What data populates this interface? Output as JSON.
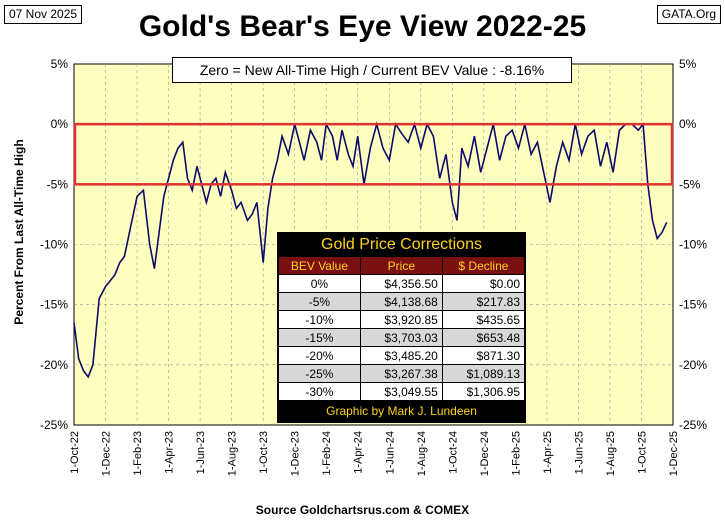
{
  "header": {
    "date": "07 Nov 2025",
    "source_tag": "GATA.Org",
    "title": "Gold's Bear's Eye View 2022-25",
    "info": "Zero = New All-Time High / Current  BEV Value : -8.16%",
    "footer": "Source Goldchartsrus.com & COMEX"
  },
  "table": {
    "title": "Gold Price Corrections",
    "headers": [
      "BEV Value",
      "Price",
      "$ Decline"
    ],
    "rows": [
      [
        "0%",
        "$4,356.50",
        "$0.00"
      ],
      [
        "-5%",
        "$4,138.68",
        "$217.83"
      ],
      [
        "-10%",
        "$3,920.85",
        "$435.65"
      ],
      [
        "-15%",
        "$3,703.03",
        "$653.48"
      ],
      [
        "-20%",
        "$3,485.20",
        "$871.30"
      ],
      [
        "-25%",
        "$3,267.38",
        "$1,089.13"
      ],
      [
        "-30%",
        "$3,049.55",
        "$1,306.95"
      ]
    ],
    "footer": "Graphic by Mark J. Lundeen"
  },
  "chart_data": {
    "type": "line",
    "title": "Gold's Bear's Eye View 2022-25",
    "ylabel": "Percent  From  Last  All-Time High",
    "xlabel": "",
    "ylim": [
      -25,
      5
    ],
    "y_ticks": [
      5,
      0,
      -5,
      -10,
      -15,
      -20,
      -25
    ],
    "y_tick_labels": [
      "5%",
      "0%",
      "-5%",
      "-10%",
      "-15%",
      "-20%",
      "-25%"
    ],
    "x_ticks": [
      "1-Oct-22",
      "1-Dec-22",
      "1-Feb-23",
      "1-Apr-23",
      "1-Jun-23",
      "1-Aug-23",
      "1-Oct-23",
      "1-Dec-23",
      "1-Feb-24",
      "1-Apr-24",
      "1-Jun-24",
      "1-Aug-24",
      "1-Oct-24",
      "1-Dec-24",
      "1-Feb-25",
      "1-Apr-25",
      "1-Jun-25",
      "1-Aug-25",
      "1-Oct-25",
      "1-Dec-25"
    ],
    "highlight_band": [
      -5,
      0
    ],
    "current_value": -8.16,
    "colors": {
      "line": "#0b0b6b",
      "plot_bg": "#ffffc0",
      "band": "#e03030",
      "grid": "#999999"
    },
    "series": [
      {
        "name": "BEV",
        "x": [
          0,
          0.15,
          0.3,
          0.45,
          0.6,
          0.8,
          1.0,
          1.15,
          1.3,
          1.45,
          1.6,
          1.8,
          2.0,
          2.2,
          2.4,
          2.55,
          2.7,
          2.85,
          3.0,
          3.15,
          3.3,
          3.45,
          3.6,
          3.75,
          3.9,
          4.05,
          4.2,
          4.35,
          4.5,
          4.65,
          4.8,
          5.0,
          5.15,
          5.3,
          5.5,
          5.65,
          5.8,
          6.0,
          6.15,
          6.3,
          6.45,
          6.6,
          6.8,
          7.0,
          7.15,
          7.3,
          7.5,
          7.7,
          7.85,
          8.0,
          8.2,
          8.35,
          8.5,
          8.7,
          8.85,
          9.0,
          9.2,
          9.4,
          9.6,
          9.8,
          10.0,
          10.2,
          10.4,
          10.6,
          10.8,
          11.0,
          11.2,
          11.4,
          11.6,
          11.8,
          12.0,
          12.15,
          12.3,
          12.5,
          12.7,
          12.9,
          13.1,
          13.3,
          13.5,
          13.7,
          13.9,
          14.1,
          14.3,
          14.5,
          14.7,
          14.9,
          15.1,
          15.3,
          15.5,
          15.7,
          15.9,
          16.1,
          16.3,
          16.5,
          16.7,
          16.9,
          17.1,
          17.3,
          17.5,
          17.7,
          17.9,
          18.05,
          18.2,
          18.35,
          18.5,
          18.65,
          18.8
        ],
        "values": [
          -16.5,
          -19.5,
          -20.5,
          -21.0,
          -20.0,
          -14.5,
          -13.5,
          -13.0,
          -12.5,
          -11.5,
          -11.0,
          -8.5,
          -6.0,
          -5.5,
          -10.0,
          -12.0,
          -9.0,
          -6.0,
          -4.5,
          -3.0,
          -2.0,
          -1.5,
          -4.5,
          -5.5,
          -3.5,
          -5.0,
          -6.5,
          -5.0,
          -4.5,
          -6.0,
          -4.0,
          -5.5,
          -7.0,
          -6.5,
          -8.0,
          -7.5,
          -6.5,
          -11.5,
          -7.0,
          -4.5,
          -3.0,
          -1.0,
          -2.5,
          0.0,
          -1.5,
          -3.0,
          -0.5,
          -1.5,
          -3.0,
          0.0,
          -1.0,
          -3.0,
          -0.5,
          -2.5,
          -3.5,
          -1.0,
          -5.0,
          -2.0,
          0.0,
          -2.0,
          -3.0,
          0.0,
          -0.8,
          -1.5,
          0.0,
          -2.0,
          0.0,
          -1.0,
          -4.5,
          -2.5,
          -6.5,
          -8.0,
          -2.0,
          -3.5,
          -1.0,
          -4.0,
          -2.0,
          0.0,
          -3.0,
          -1.0,
          -0.5,
          -2.0,
          0.0,
          -2.5,
          -1.5,
          -4.0,
          -6.5,
          -3.5,
          -1.5,
          -3.0,
          0.0,
          -2.5,
          -1.0,
          -0.5,
          -3.5,
          -1.5,
          -4.0,
          -0.5,
          0.0,
          0.0,
          -0.5,
          0.0,
          -5.0,
          -8.0,
          -9.5,
          -9.0,
          -8.16
        ]
      }
    ]
  }
}
